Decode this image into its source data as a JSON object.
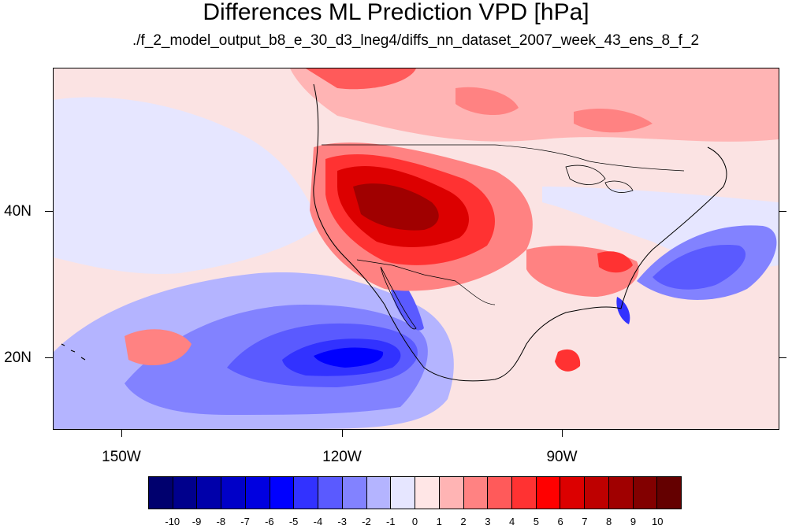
{
  "title": "Differences ML Prediction VPD [hPa]",
  "subtitle": "./f_2_model_output_b8_e_30_d3_lneg4/diffs_nn_dataset_2007_week_43_ens_8_f_2",
  "map": {
    "lat_labels": [
      "40N",
      "20N"
    ],
    "lon_labels": [
      "150W",
      "120W",
      "90W"
    ]
  },
  "colorbar": {
    "labels": [
      "-10",
      "-9",
      "-8",
      "-7",
      "-6",
      "-5",
      "-4",
      "-3",
      "-2",
      "-1",
      "0",
      "1",
      "2",
      "3",
      "4",
      "5",
      "6",
      "7",
      "8",
      "9",
      "10"
    ],
    "colors": [
      "#00006e",
      "#00008c",
      "#0000aa",
      "#0000c8",
      "#0000e0",
      "#0000ff",
      "#3232ff",
      "#5a5aff",
      "#8282ff",
      "#b4b4ff",
      "#e6e6ff",
      "#ffe6e6",
      "#ffb4b4",
      "#ff8282",
      "#ff5a5a",
      "#ff3232",
      "#ff0000",
      "#dc0000",
      "#be0000",
      "#a00000",
      "#820000",
      "#640000"
    ]
  }
}
